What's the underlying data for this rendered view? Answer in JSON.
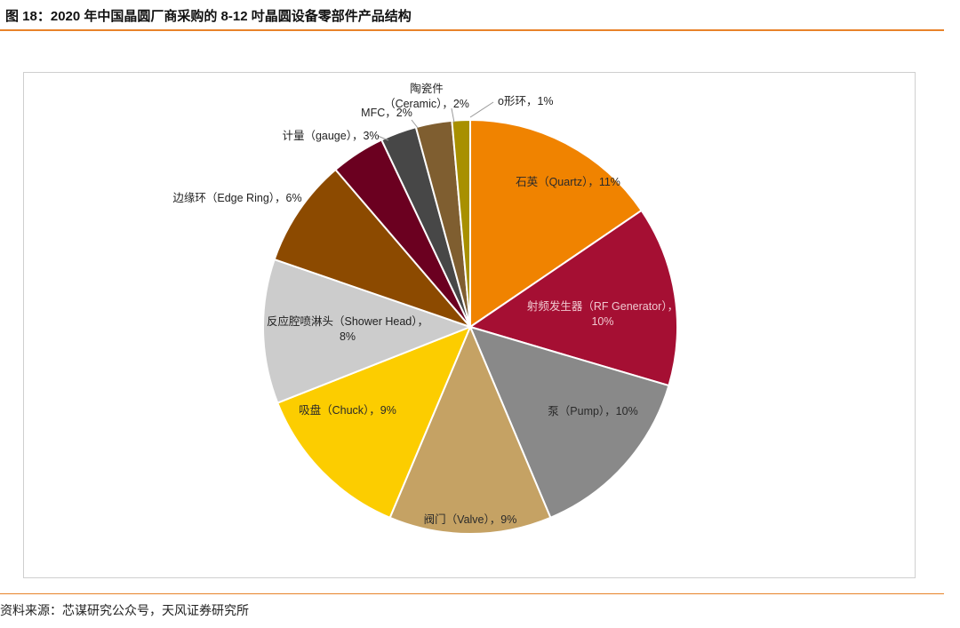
{
  "figure": {
    "title": "图 18：2020 年中国晶圆厂商采购的 8-12 吋晶圆设备零部件产品结构",
    "source": "资料来源：芯谋研究公众号，天风证券研究所"
  },
  "chart_data": {
    "type": "pie",
    "title": "",
    "start": "12 o'clock, clockwise",
    "slices": [
      {
        "label": "石英（Quartz），11%",
        "value": 11,
        "color": "#f08300"
      },
      {
        "label": "射频发生器（RF Generator），10%",
        "value": 10,
        "color": "#a50f33"
      },
      {
        "label": "泵（Pump），10%",
        "value": 10,
        "color": "#898989"
      },
      {
        "label": "阀门（Valve），9%",
        "value": 9,
        "color": "#c5a264"
      },
      {
        "label": "吸盘（Chuck），9%",
        "value": 9,
        "color": "#fccd00"
      },
      {
        "label": "反应腔喷淋头（Shower Head），8%",
        "value": 8,
        "color": "#cccccc"
      },
      {
        "label": "边缘环（Edge Ring），6%",
        "value": 6,
        "color": "#8c4a00"
      },
      {
        "label": "计量（gauge），3%",
        "value": 3,
        "color": "#6b0020"
      },
      {
        "label": "MFC，2%",
        "value": 2,
        "color": "#474747"
      },
      {
        "label": "陶瓷件（Ceramic），2%",
        "value": 2,
        "color": "#7f5e30"
      },
      {
        "label": "o形环，1%",
        "value": 1,
        "color": "#a89000"
      }
    ]
  }
}
